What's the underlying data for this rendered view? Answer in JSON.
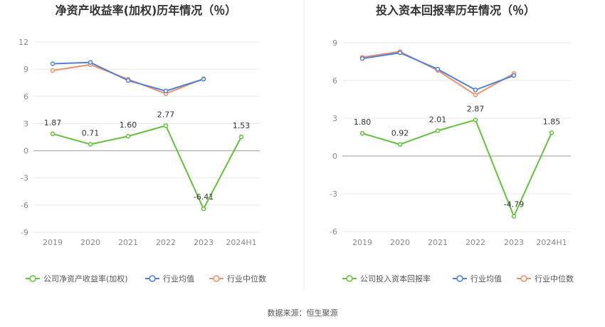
{
  "source": "数据来源：恒生聚源",
  "chart_data": [
    {
      "type": "line",
      "title": "净资产收益率(加权)历年情况（％）",
      "categories": [
        "2019",
        "2020",
        "2021",
        "2022",
        "2023",
        "2024H1"
      ],
      "yticks": [
        "12",
        "9",
        "6",
        "3",
        "0",
        "-3",
        "-6",
        "-9"
      ],
      "ylim": [
        -9,
        12
      ],
      "series": [
        {
          "name": "公司净资产收益率(加权)",
          "color": "#62c23a",
          "values": [
            1.87,
            0.71,
            1.6,
            2.77,
            -6.41,
            1.53
          ],
          "labels": [
            "1.87",
            "0.71",
            "1.60",
            "2.77",
            "-6.41",
            "1.53"
          ]
        },
        {
          "name": "行业均值",
          "color": "#4f7fd8",
          "values": [
            9.6,
            9.75,
            7.75,
            6.6,
            7.9,
            null
          ]
        },
        {
          "name": "行业中位数",
          "color": "#f0906a",
          "values": [
            8.85,
            9.5,
            7.9,
            6.3,
            7.95,
            null
          ]
        }
      ],
      "legend_position": "bottom"
    },
    {
      "type": "line",
      "title": "投入资本回报率历年情况（％）",
      "categories": [
        "2019",
        "2020",
        "2021",
        "2022",
        "2023",
        "2024H1"
      ],
      "yticks": [
        "9",
        "6",
        "3",
        "0",
        "-3",
        "-6"
      ],
      "ylim": [
        -6,
        9
      ],
      "series": [
        {
          "name": "公司投入资本回报率",
          "color": "#62c23a",
          "values": [
            1.8,
            0.92,
            2.01,
            2.87,
            -4.79,
            1.85
          ],
          "labels": [
            "1.80",
            "0.92",
            "2.01",
            "2.87",
            "-4.79",
            "1.85"
          ]
        },
        {
          "name": "行业均值",
          "color": "#4f7fd8",
          "values": [
            7.75,
            8.2,
            6.9,
            5.25,
            6.4,
            null
          ]
        },
        {
          "name": "行业中位数",
          "color": "#f0906a",
          "values": [
            7.85,
            8.3,
            6.8,
            4.85,
            6.55,
            null
          ]
        }
      ],
      "legend_position": "bottom"
    }
  ]
}
